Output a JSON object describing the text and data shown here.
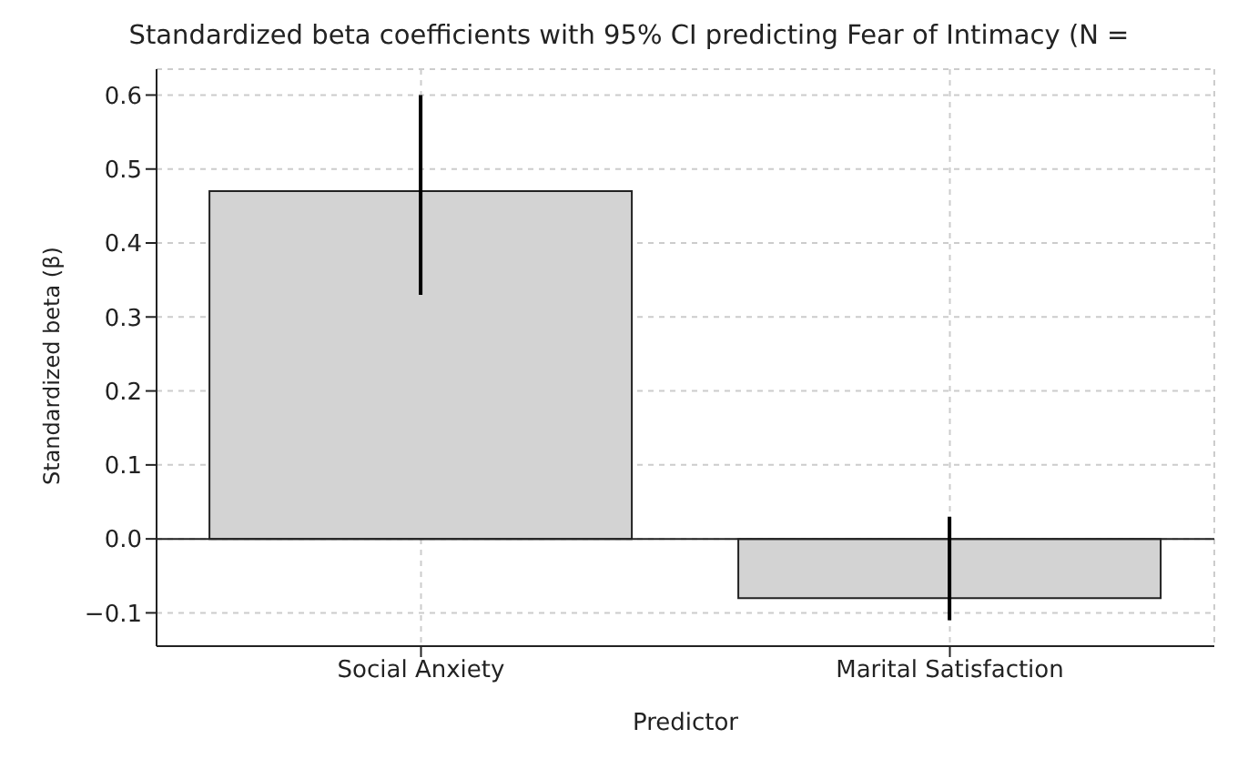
{
  "chart_data": {
    "type": "bar",
    "title": "Standardized beta coefficients with 95% CI predicting Fear of Intimacy (N =",
    "xlabel": "Predictor",
    "ylabel": "Standardized beta (β)",
    "categories": [
      "Social Anxiety",
      "Marital Satisfaction"
    ],
    "values": [
      0.47,
      -0.08
    ],
    "color": "#d3d3d3",
    "errors": [
      [
        0.33,
        0.6
      ],
      [
        -0.11,
        0.03
      ]
    ],
    "ylim": [
      -0.145,
      0.635
    ],
    "yticks": [
      {
        "value": -0.1,
        "label": "−0.1"
      },
      {
        "value": 0,
        "label": "0.0"
      },
      {
        "value": 0.1,
        "label": "0.1"
      },
      {
        "value": 0.2,
        "label": "0.2"
      },
      {
        "value": 0.3,
        "label": "0.3"
      },
      {
        "value": 0.4,
        "label": "0.4"
      },
      {
        "value": 0.5,
        "label": "0.5"
      },
      {
        "value": 0.6,
        "label": "0.6"
      }
    ],
    "grid": true
  }
}
